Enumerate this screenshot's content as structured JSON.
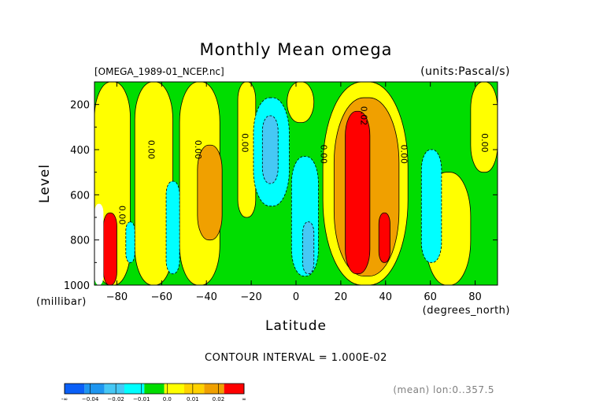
{
  "chart_data": {
    "type": "heatmap",
    "title": "Monthly Mean omega",
    "file_label": "[OMEGA_1989-01_NCEP.nc]",
    "units_label": "(units:Pascal/s)",
    "xlabel": "Latitude",
    "x_units": "(degrees_north)",
    "ylabel": "Level",
    "y_units": "(millibar)",
    "xlim": [
      -90,
      90
    ],
    "ylim": [
      1000,
      100
    ],
    "x_ticks": [
      -80,
      -60,
      -40,
      -20,
      0,
      20,
      40,
      60,
      80
    ],
    "x_tick_labels": [
      "−80",
      "−60",
      "−40",
      "−20",
      "0",
      "20",
      "40",
      "60",
      "80"
    ],
    "y_ticks": [
      200,
      400,
      600,
      800,
      1000
    ],
    "y_tick_labels": [
      "200",
      "400",
      "600",
      "800",
      "1000"
    ],
    "contour_interval_text": "CONTOUR INTERVAL = 1.000E-02",
    "footer_text": "(mean) lon:0..357.5",
    "contour_labels": [
      {
        "text": "0.00",
        "lat": -66,
        "lev": 400
      },
      {
        "text": "0.00",
        "lat": -45,
        "lev": 400
      },
      {
        "text": "0.00",
        "lat": -24,
        "lev": 370
      },
      {
        "text": "0.00",
        "lat": 11,
        "lev": 420
      },
      {
        "text": "0.00",
        "lat": 47,
        "lev": 420
      },
      {
        "text": "0.00",
        "lat": 83,
        "lev": 370
      },
      {
        "text": "0.02",
        "lat": 29,
        "lev": 250
      },
      {
        "text": "0.00",
        "lat": -79,
        "lev": 690
      }
    ],
    "colorbar": {
      "colors": [
        "#0a5ff7",
        "#1e96f0",
        "#46c8f5",
        "#00ffff",
        "#00dd00",
        "#ffff00",
        "#ffd200",
        "#f0a000",
        "#ff0000"
      ],
      "labels": [
        "-∞",
        "−0.04",
        "−0.02",
        "−0.01",
        "0.0",
        "0.01",
        "0.02",
        "∞"
      ]
    },
    "level_colors": {
      "-0.03": "#1e96f0",
      "-0.02": "#46c8f5",
      "-0.01": "#00ffff",
      "0.00": "#00dd00",
      "0.01": "#ffff00",
      "0.02": "#f0a000",
      "0.03": "#ff0000",
      "0.04": "#dd0000",
      "missing": "#ffffff"
    },
    "regions": [
      {
        "value": "0.01",
        "lat_range": [
          -90,
          -74
        ],
        "lev_range": [
          100,
          1000
        ]
      },
      {
        "value": "0.01",
        "lat_range": [
          -72,
          -55
        ],
        "lev_range": [
          100,
          1000
        ]
      },
      {
        "value": "0.01",
        "lat_range": [
          -52,
          -34
        ],
        "lev_range": [
          100,
          1000
        ]
      },
      {
        "value": "0.01",
        "lat_range": [
          -26,
          -18
        ],
        "lev_range": [
          100,
          700
        ]
      },
      {
        "value": "0.01",
        "lat_range": [
          -4,
          8
        ],
        "lev_range": [
          100,
          280
        ]
      },
      {
        "value": "0.01",
        "lat_range": [
          12,
          50
        ],
        "lev_range": [
          100,
          1000
        ]
      },
      {
        "value": "0.01",
        "lat_range": [
          58,
          78
        ],
        "lev_range": [
          500,
          1000
        ]
      },
      {
        "value": "0.01",
        "lat_range": [
          78,
          90
        ],
        "lev_range": [
          100,
          500
        ]
      },
      {
        "value": "0.02",
        "lat_range": [
          -44,
          -33
        ],
        "lev_range": [
          380,
          800
        ]
      },
      {
        "value": "0.02",
        "lat_range": [
          17,
          46
        ],
        "lev_range": [
          170,
          960
        ]
      },
      {
        "value": "0.03",
        "lat_range": [
          22,
          33
        ],
        "lev_range": [
          230,
          950
        ]
      },
      {
        "value": "0.03",
        "lat_range": [
          37,
          42
        ],
        "lev_range": [
          680,
          900
        ]
      },
      {
        "value": "0.03",
        "lat_range": [
          -86,
          -80
        ],
        "lev_range": [
          680,
          1000
        ]
      },
      {
        "value": "-0.01",
        "lat_range": [
          -19,
          -3
        ],
        "lev_range": [
          170,
          650
        ]
      },
      {
        "value": "-0.01",
        "lat_range": [
          -2,
          10
        ],
        "lev_range": [
          430,
          960
        ]
      },
      {
        "value": "-0.01",
        "lat_range": [
          -58,
          -52
        ],
        "lev_range": [
          540,
          950
        ]
      },
      {
        "value": "-0.01",
        "lat_range": [
          -76,
          -72
        ],
        "lev_range": [
          720,
          900
        ]
      },
      {
        "value": "-0.01",
        "lat_range": [
          56,
          65
        ],
        "lev_range": [
          400,
          900
        ]
      },
      {
        "value": "-0.02",
        "lat_range": [
          -15,
          -8
        ],
        "lev_range": [
          250,
          550
        ]
      },
      {
        "value": "-0.02",
        "lat_range": [
          3,
          8
        ],
        "lev_range": [
          720,
          950
        ]
      },
      {
        "value": "missing",
        "lat_range": [
          -90,
          -86
        ],
        "lev_range": [
          640,
          1000
        ]
      }
    ]
  }
}
